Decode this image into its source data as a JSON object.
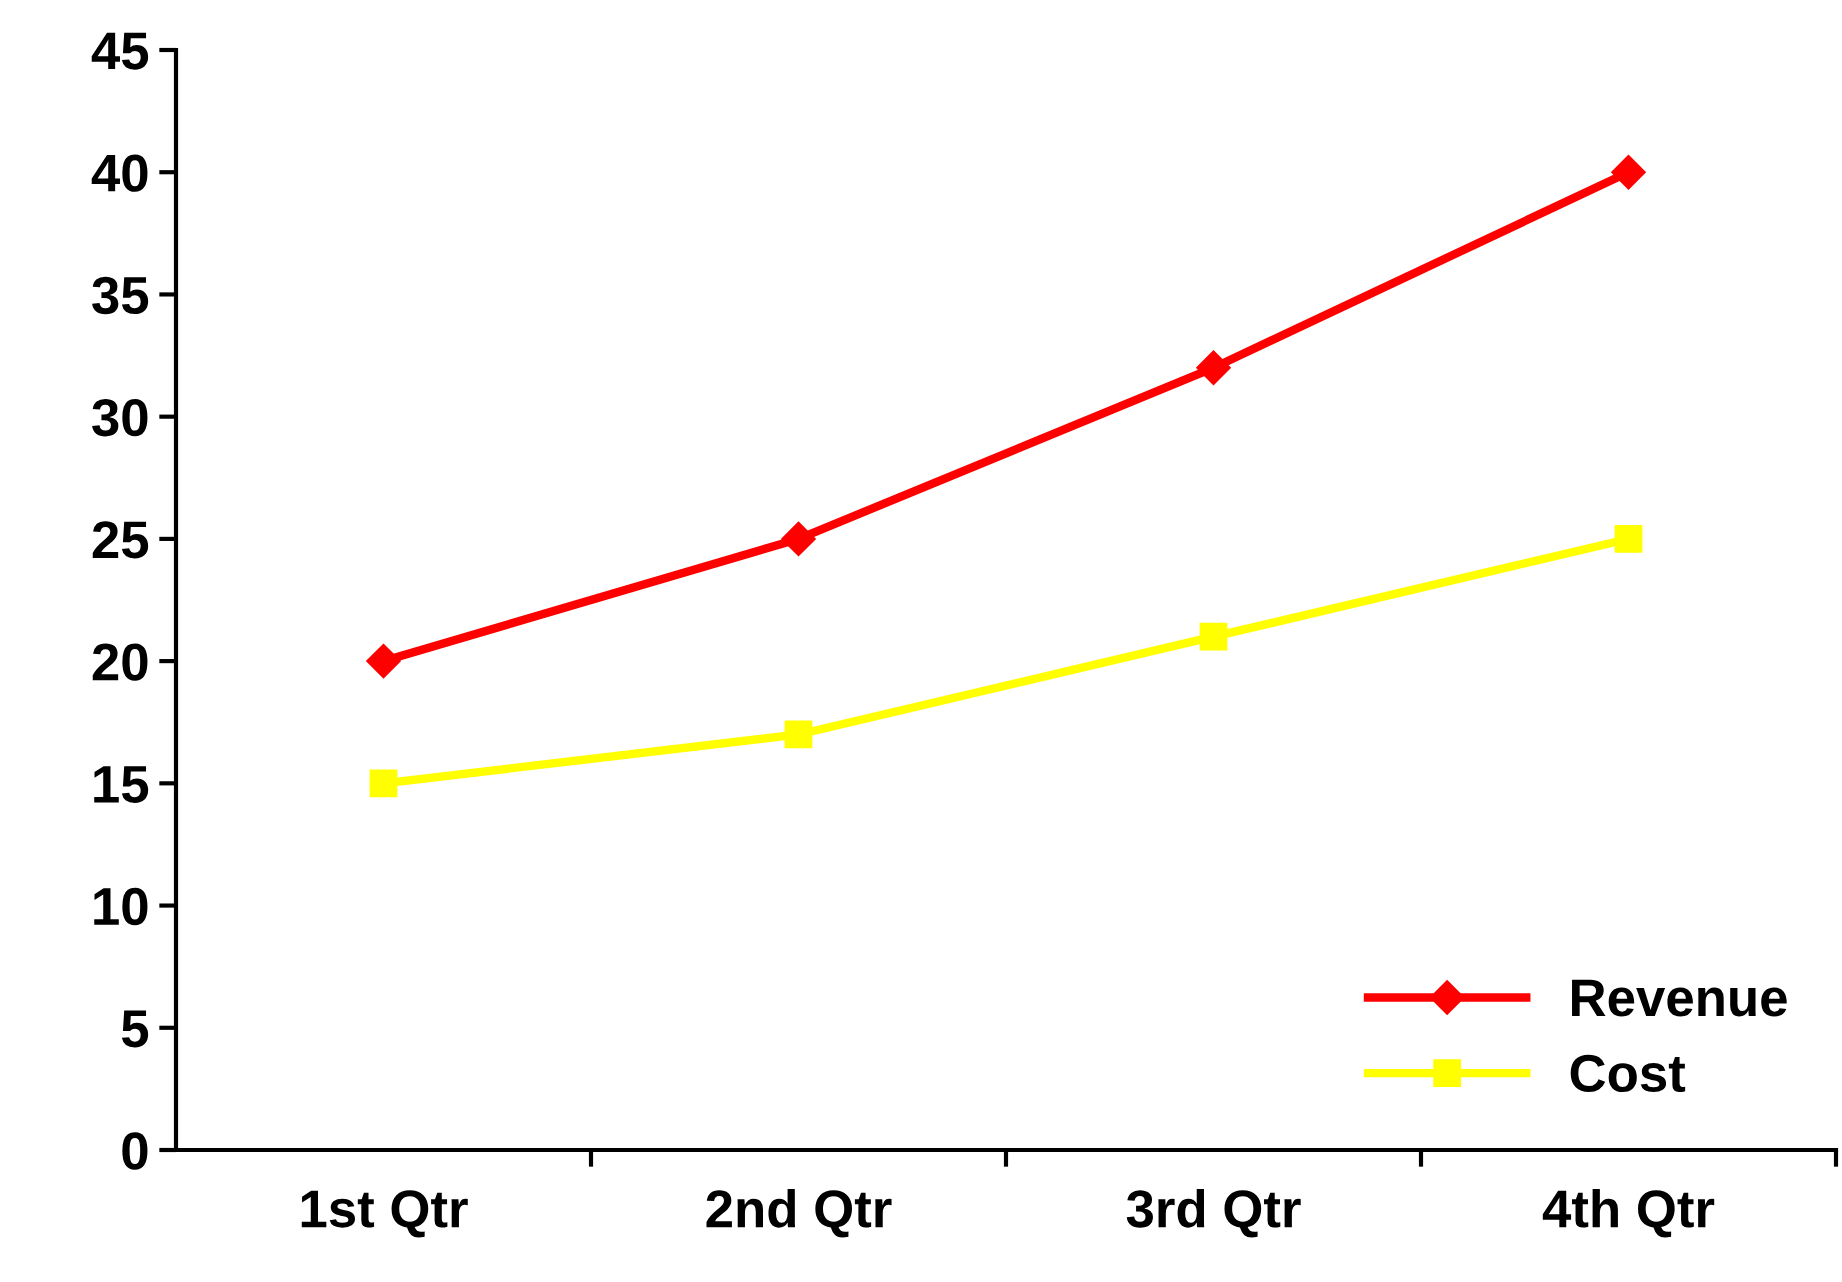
{
  "chart_data": {
    "type": "line",
    "categories": [
      "1st Qtr",
      "2nd Qtr",
      "3rd Qtr",
      "4th Qtr"
    ],
    "series": [
      {
        "name": "Revenue",
        "color": "#ff0000",
        "values": [
          20,
          25,
          32,
          40
        ],
        "marker": "diamond"
      },
      {
        "name": "Cost",
        "color": "#ffff00",
        "values": [
          15,
          17,
          21,
          25
        ],
        "marker": "square"
      }
    ],
    "ylim": [
      0,
      45
    ],
    "yticks": [
      0,
      5,
      10,
      15,
      20,
      25,
      30,
      35,
      40,
      45
    ],
    "grid": false,
    "legend": "bottom right",
    "line_style": "solid"
  }
}
